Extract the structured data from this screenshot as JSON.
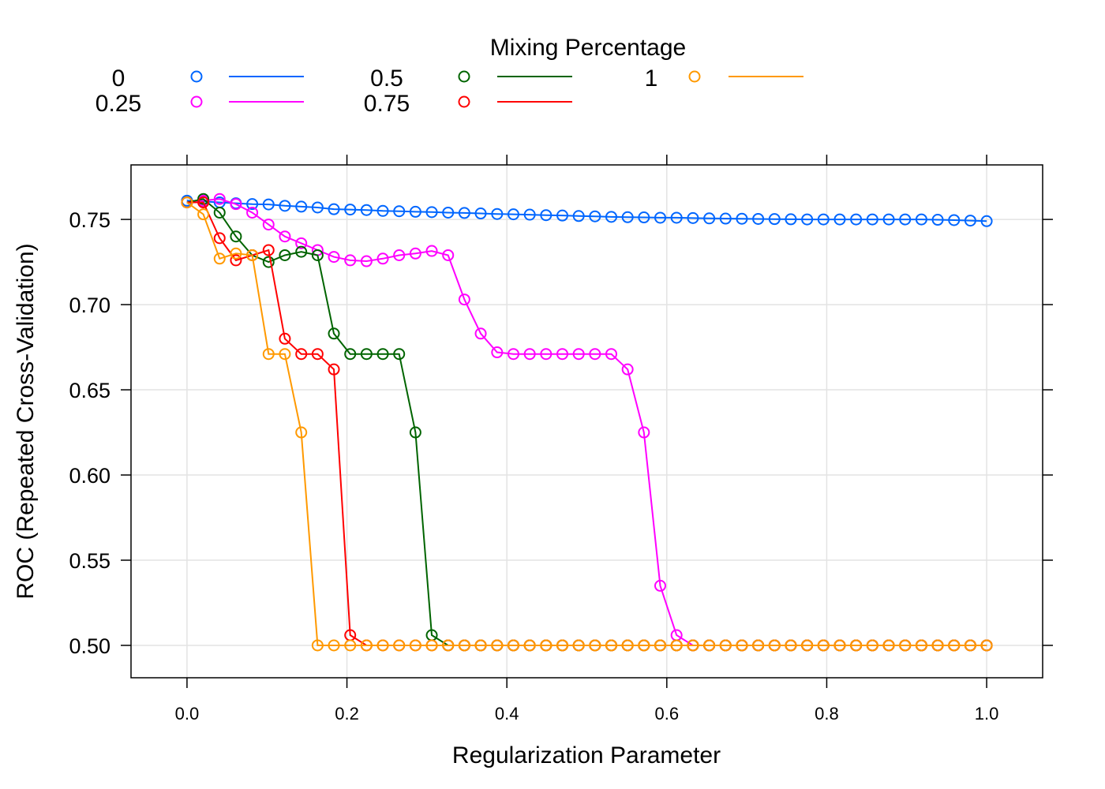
{
  "chart_data": {
    "type": "line",
    "title": "",
    "xlabel": "Regularization Parameter",
    "ylabel": "ROC (Repeated Cross-Validation)",
    "xlim": [
      -0.07,
      1.07
    ],
    "ylim": [
      0.481,
      0.782
    ],
    "xticks": [
      0.0,
      0.2,
      0.4,
      0.6,
      0.8,
      1.0
    ],
    "xtick_labels": [
      "0.0",
      "0.2",
      "0.4",
      "0.6",
      "0.8",
      "1.0"
    ],
    "yticks": [
      0.5,
      0.55,
      0.6,
      0.65,
      0.7,
      0.75
    ],
    "ytick_labels": [
      "0.50",
      "0.55",
      "0.60",
      "0.65",
      "0.70",
      "0.75"
    ],
    "grid": true,
    "legend": {
      "title": "Mixing Percentage",
      "placement": "top",
      "columns": 3
    },
    "x": [
      0.0,
      0.0204,
      0.0408,
      0.0612,
      0.0816,
      0.102,
      0.1224,
      0.1429,
      0.1633,
      0.1837,
      0.2041,
      0.2245,
      0.2449,
      0.2653,
      0.2857,
      0.3061,
      0.3265,
      0.3469,
      0.3673,
      0.3878,
      0.4082,
      0.4286,
      0.449,
      0.4694,
      0.4898,
      0.5102,
      0.5306,
      0.551,
      0.5714,
      0.5918,
      0.6122,
      0.6327,
      0.6531,
      0.6735,
      0.6939,
      0.7143,
      0.7347,
      0.7551,
      0.7755,
      0.7959,
      0.8163,
      0.8367,
      0.8571,
      0.8776,
      0.898,
      0.9184,
      0.9388,
      0.9592,
      0.9796,
      1.0
    ],
    "series": [
      {
        "name": "0",
        "color": "#0066FF",
        "values": [
          0.761,
          0.7605,
          0.76,
          0.7595,
          0.759,
          0.7588,
          0.758,
          0.7575,
          0.757,
          0.756,
          0.7558,
          0.7555,
          0.755,
          0.7548,
          0.7545,
          0.7543,
          0.754,
          0.7538,
          0.7535,
          0.7532,
          0.753,
          0.7528,
          0.7525,
          0.7523,
          0.752,
          0.7518,
          0.7515,
          0.7513,
          0.7512,
          0.751,
          0.751,
          0.7508,
          0.7506,
          0.7505,
          0.7504,
          0.7503,
          0.7502,
          0.7501,
          0.75,
          0.75,
          0.75,
          0.75,
          0.75,
          0.75,
          0.75,
          0.75,
          0.7498,
          0.7496,
          0.7493,
          0.749
        ]
      },
      {
        "name": "0.25",
        "color": "#FF00FF",
        "values": [
          0.76,
          0.761,
          0.762,
          0.759,
          0.754,
          0.747,
          0.74,
          0.736,
          0.732,
          0.728,
          0.726,
          0.7255,
          0.727,
          0.729,
          0.73,
          0.7315,
          0.729,
          0.703,
          0.683,
          0.672,
          0.671,
          0.671,
          0.671,
          0.671,
          0.671,
          0.671,
          0.671,
          0.662,
          0.625,
          0.535,
          0.506,
          0.5,
          0.5,
          0.5,
          0.5,
          0.5,
          0.5,
          0.5,
          0.5,
          0.5,
          0.5,
          0.5,
          0.5,
          0.5,
          0.5,
          0.5,
          0.5,
          0.5,
          0.5,
          0.5
        ]
      },
      {
        "name": "0.5",
        "color": "#006400",
        "values": [
          0.76,
          0.762,
          0.754,
          0.74,
          0.729,
          0.725,
          0.729,
          0.731,
          0.729,
          0.683,
          0.671,
          0.671,
          0.671,
          0.671,
          0.625,
          0.506,
          0.5,
          0.5,
          0.5,
          0.5,
          0.5,
          0.5,
          0.5,
          0.5,
          0.5,
          0.5,
          0.5,
          0.5,
          0.5,
          0.5,
          0.5,
          0.5,
          0.5,
          0.5,
          0.5,
          0.5,
          0.5,
          0.5,
          0.5,
          0.5,
          0.5,
          0.5,
          0.5,
          0.5,
          0.5,
          0.5,
          0.5,
          0.5,
          0.5,
          0.5
        ]
      },
      {
        "name": "0.75",
        "color": "#FF0000",
        "values": [
          0.76,
          0.76,
          0.739,
          0.726,
          0.729,
          0.732,
          0.68,
          0.671,
          0.671,
          0.662,
          0.506,
          0.5,
          0.5,
          0.5,
          0.5,
          0.5,
          0.5,
          0.5,
          0.5,
          0.5,
          0.5,
          0.5,
          0.5,
          0.5,
          0.5,
          0.5,
          0.5,
          0.5,
          0.5,
          0.5,
          0.5,
          0.5,
          0.5,
          0.5,
          0.5,
          0.5,
          0.5,
          0.5,
          0.5,
          0.5,
          0.5,
          0.5,
          0.5,
          0.5,
          0.5,
          0.5,
          0.5,
          0.5,
          0.5,
          0.5
        ]
      },
      {
        "name": "1",
        "color": "#FF9900",
        "values": [
          0.76,
          0.753,
          0.727,
          0.73,
          0.729,
          0.671,
          0.671,
          0.625,
          0.5,
          0.5,
          0.5,
          0.5,
          0.5,
          0.5,
          0.5,
          0.5,
          0.5,
          0.5,
          0.5,
          0.5,
          0.5,
          0.5,
          0.5,
          0.5,
          0.5,
          0.5,
          0.5,
          0.5,
          0.5,
          0.5,
          0.5,
          0.5,
          0.5,
          0.5,
          0.5,
          0.5,
          0.5,
          0.5,
          0.5,
          0.5,
          0.5,
          0.5,
          0.5,
          0.5,
          0.5,
          0.5,
          0.5,
          0.5,
          0.5,
          0.5
        ]
      }
    ]
  }
}
